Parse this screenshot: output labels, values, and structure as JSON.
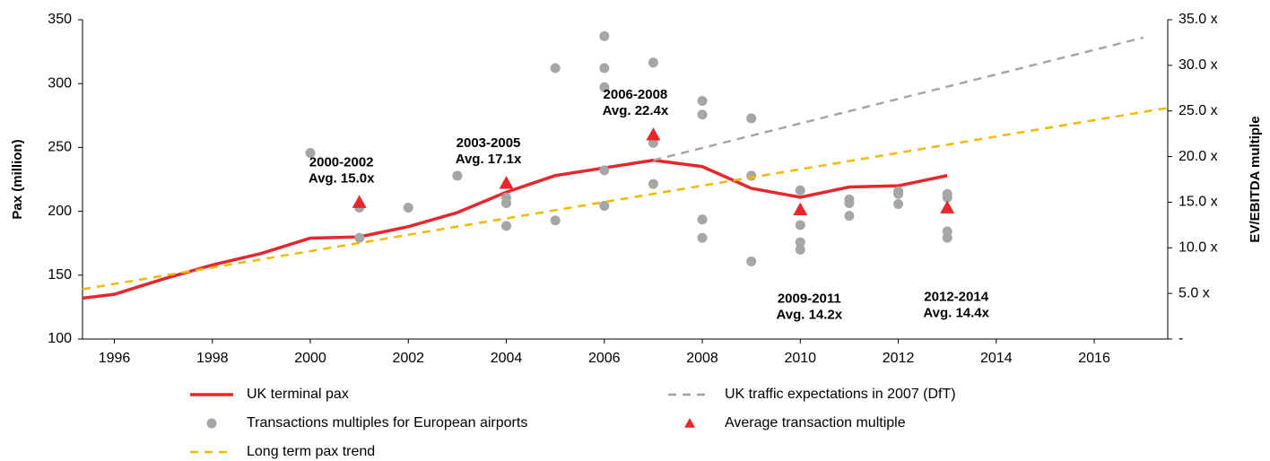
{
  "chart_data": {
    "type": "line",
    "ylabel": "Pax (million)",
    "y2label": "EV/EBITDA multiple",
    "xlim": [
      1995.35,
      2017.5
    ],
    "xticks": [
      1996,
      1998,
      2000,
      2002,
      2004,
      2006,
      2008,
      2010,
      2012,
      2014,
      2016
    ],
    "ylim": [
      100,
      350
    ],
    "yticks": [
      100,
      150,
      200,
      250,
      300,
      350
    ],
    "y2lim": [
      0,
      35
    ],
    "y2ticks": [
      {
        "value": 0,
        "label": "-"
      },
      {
        "value": 5,
        "label": "5.0 x"
      },
      {
        "value": 10,
        "label": "10.0 x"
      },
      {
        "value": 15,
        "label": "15.0 x"
      },
      {
        "value": 20,
        "label": "20.0 x"
      },
      {
        "value": 25,
        "label": "25.0 x"
      },
      {
        "value": 30,
        "label": "30.0 x"
      },
      {
        "value": 35,
        "label": "35.0 x"
      }
    ],
    "series": [
      {
        "name": "UK terminal pax",
        "type": "line",
        "color": "#e8262b",
        "axis": "y",
        "x": [
          1995.35,
          1996,
          1997,
          1998,
          1999,
          2000,
          2001,
          2002,
          2003,
          2004,
          2005,
          2006,
          2007,
          2008,
          2009,
          2010,
          2011,
          2012,
          2013
        ],
        "values": [
          132,
          135,
          147,
          158,
          167,
          179,
          180,
          188,
          199,
          215,
          228,
          234,
          240,
          235,
          218,
          211,
          219,
          220,
          228
        ]
      },
      {
        "name": "UK traffic expectations in 2007 (DfT)",
        "type": "dashed",
        "color": "#a6a6a6",
        "axis": "y",
        "x": [
          2007,
          2017
        ],
        "values": [
          240,
          336
        ]
      },
      {
        "name": "Transactions multiples for European airports",
        "type": "scatter",
        "color": "#a6a6a6",
        "axis": "y2",
        "x": [
          2000,
          2001,
          2001,
          2002,
          2003,
          2004,
          2004,
          2004,
          2005,
          2005,
          2006,
          2006,
          2006,
          2006,
          2006,
          2007,
          2007,
          2007,
          2008,
          2008,
          2008,
          2008,
          2009,
          2009,
          2009,
          2010,
          2010,
          2010,
          2010,
          2011,
          2011,
          2011,
          2012,
          2012,
          2012,
          2013,
          2013,
          2013,
          2013
        ],
        "values": [
          20.4,
          14.4,
          11.1,
          14.4,
          17.9,
          15.5,
          14.9,
          12.4,
          29.7,
          13.0,
          33.2,
          29.7,
          27.6,
          18.5,
          14.6,
          30.3,
          21.5,
          17.0,
          24.6,
          26.1,
          13.1,
          11.1,
          24.2,
          17.9,
          8.5,
          16.3,
          12.5,
          10.6,
          9.8,
          15.3,
          14.9,
          13.5,
          16.2,
          15.9,
          14.8,
          15.9,
          15.5,
          11.8,
          11.1
        ]
      },
      {
        "name": "Average transaction multiple",
        "type": "triangle",
        "color": "#e8262b",
        "axis": "y2",
        "x": [
          2001,
          2004,
          2007,
          2010,
          2013
        ],
        "values": [
          15.0,
          17.1,
          22.4,
          14.2,
          14.4
        ],
        "periods": [
          "2000-2002",
          "2003-2005",
          "2006-2008",
          "2009-2011",
          "2012-2014"
        ],
        "value_labels": [
          "Avg. 15.0x",
          "Avg. 17.1x",
          "Avg. 22.4x",
          "Avg. 14.2x",
          "Avg. 14.4x"
        ]
      },
      {
        "name": "Long term pax trend",
        "type": "dashed",
        "color": "#f5b800",
        "axis": "y",
        "x": [
          1995.35,
          2017.5
        ],
        "values": [
          139,
          281
        ]
      }
    ]
  }
}
